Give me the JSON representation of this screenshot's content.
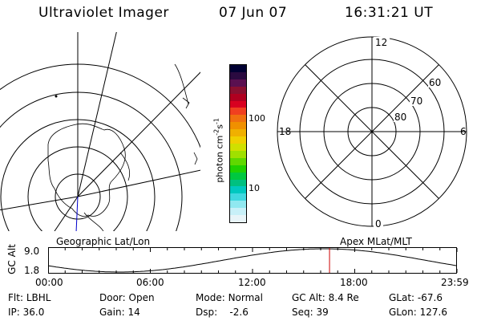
{
  "header": {
    "instrument": "Ultraviolet Imager",
    "date": "07 Jun 07",
    "time": "16:31:21 UT"
  },
  "colorbar": {
    "unit_label": "photon cm",
    "unit_sup_1": "-2",
    "unit_mid": "s",
    "unit_sup_2": "-1",
    "tick_100": "100",
    "tick_10": "10",
    "colors": [
      "#000033",
      "#2a0a40",
      "#5a1050",
      "#8a1030",
      "#b00020",
      "#d80020",
      "#f04020",
      "#f07010",
      "#f09000",
      "#f0b000",
      "#f0d000",
      "#d0e000",
      "#a0e000",
      "#60d800",
      "#20d000",
      "#00c840",
      "#00c080",
      "#00c8c0",
      "#40d8e0",
      "#90e8f0",
      "#c8f0f8",
      "#e8f4f8"
    ]
  },
  "left_panel": {
    "caption": "Geographic Lat/Lon"
  },
  "right_panel": {
    "caption": "Apex MLat/MLT",
    "mlt_12": "12",
    "mlt_18": "18",
    "mlt_6": "6",
    "mlt_0": "0",
    "lat_60": "60",
    "lat_70": "70",
    "lat_80": "80"
  },
  "orbit": {
    "ylabel": "GC Alt",
    "y_top": "9.0",
    "y_bot": "1.8",
    "x_ticks": [
      "00:00",
      "06:00",
      "12:00",
      "18:00",
      "23:59"
    ],
    "current_time_hours": 16.52
  },
  "info": {
    "flt_label": "Flt:",
    "flt_value": "LBHL",
    "ip_label": "IP:",
    "ip_value": "36.0",
    "door_label": "Door:",
    "door_value": "Open",
    "gain_label": "Gain:",
    "gain_value": "14",
    "mode_label": "Mode:",
    "mode_value": "Normal",
    "dsp_label": "Dsp:",
    "dsp_value": "-2.6",
    "gcalt_label": "GC Alt:",
    "gcalt_value": "8.4 Re",
    "seq_label": "Seq:",
    "seq_value": "39",
    "glat_label": "GLat:",
    "glat_value": "-67.6",
    "glon_label": "GLon:",
    "glon_value": "127.6"
  }
}
